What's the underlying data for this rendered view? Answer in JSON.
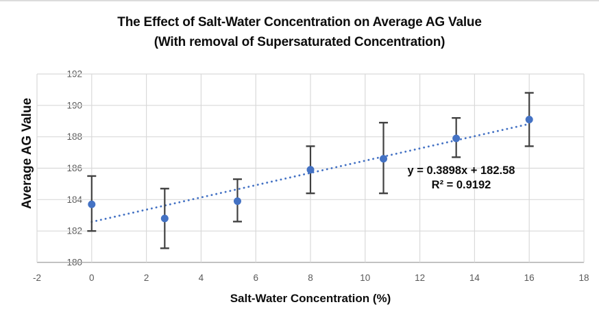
{
  "page": {
    "background": "#ffffff",
    "top_border_color": "#dcdcdc"
  },
  "chart_data": {
    "type": "scatter",
    "title": "The Effect of Salt-Water Concentration on Average AG Value",
    "subtitle": "(With removal of Supersaturated Concentration)",
    "xlabel": "Salt-Water Concentration (%)",
    "ylabel": "Average AG Value",
    "xlim": [
      -2,
      18
    ],
    "ylim": [
      180,
      192
    ],
    "x_ticks": [
      -2,
      0,
      2,
      4,
      6,
      8,
      10,
      12,
      14,
      16,
      18
    ],
    "y_ticks": [
      180,
      182,
      184,
      186,
      188,
      190,
      192
    ],
    "grid": true,
    "legend": "none",
    "points": [
      {
        "x": 0,
        "y": 183.7,
        "y_low": 182.0,
        "y_high": 185.5
      },
      {
        "x": 2.67,
        "y": 182.8,
        "y_low": 180.9,
        "y_high": 184.7
      },
      {
        "x": 5.33,
        "y": 183.9,
        "y_low": 182.6,
        "y_high": 185.3
      },
      {
        "x": 8,
        "y": 185.9,
        "y_low": 184.4,
        "y_high": 187.4
      },
      {
        "x": 10.67,
        "y": 186.6,
        "y_low": 184.4,
        "y_high": 188.9
      },
      {
        "x": 13.33,
        "y": 187.9,
        "y_low": 186.7,
        "y_high": 189.2
      },
      {
        "x": 16,
        "y": 189.1,
        "y_low": 187.4,
        "y_high": 190.8
      }
    ],
    "trendline": {
      "slope": 0.3898,
      "intercept": 182.58,
      "x_start": 0,
      "x_end": 16,
      "style": "dotted",
      "equation_label": "y = 0.3898x + 182.58",
      "r2_label": "R² = 0.9192"
    },
    "colors": {
      "marker": "#4472C4",
      "trendline": "#4472C4",
      "error_bar": "#404040",
      "gridline": "#D9D9D9",
      "axis_line": "#ADADAD",
      "tick_label": "#595959",
      "title_text": "#0d0d0d"
    }
  }
}
